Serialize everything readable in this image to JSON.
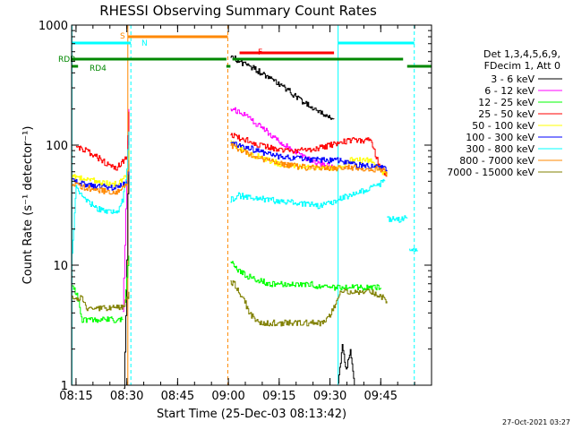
{
  "chart_data": {
    "type": "line",
    "title": "RHESSI Observing Summary Count Rates",
    "xlabel": "Start Time (25-Dec-03 08:13:42)",
    "ylabel": "Count Rate (s⁻¹ detector⁻¹)",
    "yscale": "log",
    "xlim": [
      8.2283,
      10.0
    ],
    "ylim": [
      1,
      1000
    ],
    "x_ticks": [
      8.25,
      8.5,
      8.75,
      9.0,
      9.25,
      9.5,
      9.75
    ],
    "x_tick_labels": [
      "08:15",
      "08:30",
      "08:45",
      "09:00",
      "09:15",
      "09:30",
      "09:45"
    ],
    "y_ticks": [
      1,
      10,
      100,
      1000
    ],
    "y_tick_labels": [
      "1",
      "10",
      "100",
      "1000"
    ],
    "legend_header": [
      "Det 1,3,4,5,6,9,",
      "FDecim 1, Att 0"
    ],
    "legend_position": "right",
    "footer": "27-Oct-2021 03:27",
    "series": [
      {
        "name": "3 - 6 keV",
        "color": "#000000",
        "segments": [
          {
            "x": [
              8.485,
              8.49,
              8.495,
              8.5,
              8.505,
              8.51
            ],
            "y": [
              1,
              1.8,
              4,
              11,
              40,
              120
            ]
          },
          {
            "x": [
              9.01,
              9.05,
              9.1,
              9.15,
              9.2,
              9.25,
              9.3,
              9.35,
              9.4,
              9.45,
              9.5,
              9.52
            ],
            "y": [
              560,
              500,
              460,
              410,
              360,
              320,
              280,
              240,
              210,
              185,
              170,
              165
            ]
          },
          {
            "x": [
              9.54,
              9.56,
              9.58,
              9.6,
              9.62
            ],
            "y": [
              1,
              2.2,
              1.3,
              2.0,
              1
            ]
          }
        ]
      },
      {
        "name": "6 - 12 keV",
        "color": "#ff00ff",
        "segments": [
          {
            "x": [
              8.48,
              8.49,
              8.5,
              8.51
            ],
            "y": [
              4,
              15,
              60,
              200
            ]
          },
          {
            "x": [
              9.01,
              9.05,
              9.1,
              9.15,
              9.2,
              9.25,
              9.3,
              9.35,
              9.4,
              9.45,
              9.5,
              9.52
            ],
            "y": [
              200,
              190,
              170,
              145,
              125,
              108,
              95,
              82,
              75,
              70,
              68,
              66
            ]
          }
        ]
      },
      {
        "name": "12 - 25 keV",
        "color": "#00ff00",
        "segments": [
          {
            "x": [
              8.23,
              8.25,
              8.28,
              8.3,
              8.35,
              8.4,
              8.45,
              8.48
            ],
            "y": [
              6.5,
              6,
              3.5,
              3.5,
              3.5,
              3.5,
              3.5,
              3.5
            ]
          },
          {
            "x": [
              8.49,
              8.5,
              8.51
            ],
            "y": [
              5,
              8,
              12
            ]
          },
          {
            "x": [
              9.01,
              9.05,
              9.1,
              9.15,
              9.2,
              9.25,
              9.3,
              9.35,
              9.4,
              9.45,
              9.5,
              9.55,
              9.6,
              9.65,
              9.7,
              9.75
            ],
            "y": [
              11,
              9,
              8,
              7.5,
              7,
              7,
              7,
              7,
              7,
              6.5,
              6.5,
              6.5,
              6.5,
              6.5,
              6.5,
              6.5
            ]
          }
        ]
      },
      {
        "name": "25 - 50 keV",
        "color": "#ff0000",
        "segments": [
          {
            "x": [
              8.25,
              8.27,
              8.3,
              8.35,
              8.4,
              8.45,
              8.5,
              8.51
            ],
            "y": [
              95,
              95,
              90,
              80,
              70,
              65,
              80,
              190
            ]
          },
          {
            "x": [
              9.01,
              9.05,
              9.1,
              9.15,
              9.2,
              9.25,
              9.3,
              9.35,
              9.4,
              9.45,
              9.5,
              9.55,
              9.6,
              9.65,
              9.7,
              9.75,
              9.78
            ],
            "y": [
              125,
              115,
              110,
              100,
              95,
              90,
              90,
              90,
              92,
              95,
              100,
              105,
              110,
              110,
              110,
              60,
              58
            ]
          }
        ]
      },
      {
        "name": "50 - 100 keV",
        "color": "#ffff00",
        "segments": [
          {
            "x": [
              8.23,
              8.25,
              8.3,
              8.35,
              8.4,
              8.45,
              8.5,
              8.51
            ],
            "y": [
              55,
              54,
              52,
              50,
              48,
              47,
              55,
              100
            ]
          },
          {
            "x": [
              9.01,
              9.05,
              9.1,
              9.15,
              9.2,
              9.25,
              9.3,
              9.35,
              9.4,
              9.45,
              9.5,
              9.55,
              9.6,
              9.65,
              9.7,
              9.75,
              9.78
            ],
            "y": [
              105,
              95,
              85,
              80,
              75,
              70,
              68,
              66,
              65,
              65,
              65,
              65,
              75,
              75,
              75,
              60,
              55
            ]
          }
        ]
      },
      {
        "name": "100 - 300 keV",
        "color": "#0000ff",
        "segments": [
          {
            "x": [
              8.23,
              8.25,
              8.3,
              8.35,
              8.4,
              8.45,
              8.5,
              8.51
            ],
            "y": [
              50,
              49,
              47,
              46,
              45,
              44,
              48,
              70
            ]
          },
          {
            "x": [
              9.01,
              9.05,
              9.1,
              9.15,
              9.2,
              9.25,
              9.3,
              9.35,
              9.4,
              9.45,
              9.5,
              9.55,
              9.6,
              9.65,
              9.7,
              9.75,
              9.78
            ],
            "y": [
              110,
              100,
              95,
              88,
              84,
              80,
              78,
              77,
              76,
              75,
              75,
              75,
              70,
              68,
              67,
              65,
              62
            ]
          }
        ]
      },
      {
        "name": "300 - 800 keV",
        "color": "#00ffff",
        "segments": [
          {
            "x": [
              8.23,
              8.25,
              8.27,
              8.3,
              8.35,
              8.4,
              8.45,
              8.48,
              8.5,
              8.51
            ],
            "y": [
              12,
              45,
              40,
              35,
              30,
              28,
              27,
              35,
              60,
              130
            ]
          },
          {
            "x": [
              9.01,
              9.05,
              9.1,
              9.15,
              9.2,
              9.25,
              9.3,
              9.35,
              9.4,
              9.45,
              9.5,
              9.55,
              9.6,
              9.65,
              9.7,
              9.75,
              9.77
            ],
            "y": [
              35,
              38,
              37,
              36,
              35,
              34,
              34,
              33,
              32,
              31,
              33,
              36,
              38,
              41,
              44,
              48,
              50
            ]
          },
          {
            "x": [
              9.78,
              9.8,
              9.85,
              9.88
            ],
            "y": [
              25,
              24,
              24,
              25
            ]
          },
          {
            "x": [
              9.89,
              9.91,
              9.93
            ],
            "y": [
              13,
              13,
              13
            ]
          }
        ]
      },
      {
        "name": "800 - 7000 keV",
        "color": "#ff8800",
        "segments": [
          {
            "x": [
              8.23,
              8.25,
              8.3,
              8.35,
              8.4,
              8.45,
              8.5,
              8.51
            ],
            "y": [
              48,
              46,
              44,
              42,
              41,
              40,
              46,
              75
            ]
          },
          {
            "x": [
              9.01,
              9.05,
              9.1,
              9.15,
              9.2,
              9.25,
              9.3,
              9.35,
              9.4,
              9.45,
              9.5,
              9.55,
              9.6,
              9.65,
              9.7,
              9.75,
              9.78
            ],
            "y": [
              100,
              92,
              85,
              78,
              74,
              70,
              68,
              66,
              65,
              64,
              64,
              64,
              65,
              64,
              63,
              62,
              60
            ]
          }
        ]
      },
      {
        "name": "7000 - 15000 keV",
        "color": "#808000",
        "segments": [
          {
            "x": [
              8.23,
              8.25,
              8.28,
              8.3,
              8.35,
              8.4,
              8.45,
              8.48,
              8.5,
              8.51
            ],
            "y": [
              5.5,
              5.3,
              5.3,
              4.4,
              4.4,
              4.4,
              4.4,
              4.4,
              5.2,
              6
            ]
          },
          {
            "x": [
              9.01,
              9.03,
              9.05,
              9.08,
              9.1,
              9.15,
              9.2,
              9.25,
              9.3,
              9.35,
              9.4,
              9.45,
              9.5,
              9.55,
              9.6,
              9.65,
              9.7,
              9.75,
              9.78
            ],
            "y": [
              7,
              7,
              6,
              5,
              4,
              3.3,
              3.3,
              3.3,
              3.3,
              3.3,
              3.3,
              3.3,
              3.8,
              6,
              6,
              6,
              6,
              5.5,
              5
            ]
          }
        ]
      }
    ],
    "flag_bars": [
      {
        "label": "RDB",
        "color": "#008800",
        "segments": [
          [
            8.2283,
            8.99
          ],
          [
            9.02,
            9.86
          ]
        ]
      },
      {
        "label": "RD4",
        "color": "#008800",
        "segments": [
          [
            8.2283,
            8.26
          ],
          [
            8.99,
            9.01
          ],
          [
            9.88,
            10.0
          ]
        ]
      },
      {
        "label": "S",
        "color": "#ff8800",
        "segments": [
          [
            8.505,
            8.997
          ]
        ]
      },
      {
        "label": "N",
        "color": "#00ffff",
        "segments": [
          [
            8.2283,
            8.52
          ],
          [
            9.54,
            9.915
          ]
        ]
      },
      {
        "label": "F",
        "color": "#ff0000",
        "segments": [
          [
            9.055,
            9.52
          ]
        ]
      }
    ],
    "vertical_markers": [
      {
        "x": 8.23,
        "color": "#00ffff",
        "style": "solid"
      },
      {
        "x": 8.505,
        "color": "#ff8800",
        "style": "solid"
      },
      {
        "x": 8.52,
        "color": "#00ffff",
        "style": "dashed"
      },
      {
        "x": 8.997,
        "color": "#ff8800",
        "style": "dashed"
      },
      {
        "x": 9.54,
        "color": "#00ffff",
        "style": "solid"
      },
      {
        "x": 9.915,
        "color": "#00ffff",
        "style": "dashed"
      }
    ]
  }
}
